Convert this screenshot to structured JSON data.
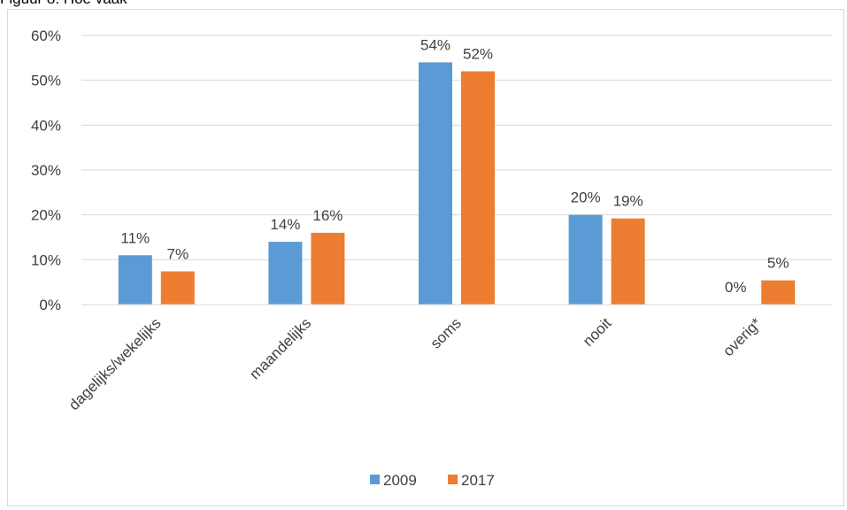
{
  "header_text": "Figuur 8. Hoe vaak",
  "chart_data": {
    "type": "bar",
    "categories": [
      "dagelijks/wekelijks",
      "maandelijks",
      "soms",
      "nooit",
      "overig*"
    ],
    "series": [
      {
        "name": "2009",
        "color": "#5b9bd5",
        "values": [
          11,
          14,
          54,
          20,
          0
        ],
        "labels": [
          "11%",
          "14%",
          "54%",
          "20%",
          "0%"
        ]
      },
      {
        "name": "2017",
        "color": "#ed7d31",
        "values": [
          7.4,
          16,
          52,
          19.2,
          5.4
        ],
        "labels": [
          "7%",
          "16%",
          "52%",
          "19%",
          "5%"
        ]
      }
    ],
    "ylim": [
      0,
      60
    ],
    "yticks": [
      0,
      10,
      20,
      30,
      40,
      50,
      60
    ],
    "ytick_labels": [
      "0%",
      "10%",
      "20%",
      "30%",
      "40%",
      "50%",
      "60%"
    ],
    "grid": true,
    "legend_position": "bottom"
  }
}
